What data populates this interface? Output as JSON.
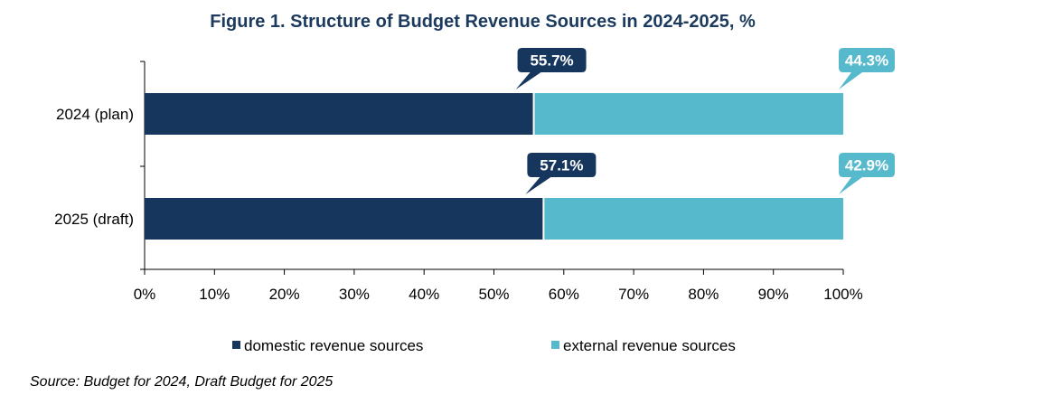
{
  "title": "Figure 1. Structure of Budget Revenue Sources in 2024-2025, %",
  "source": "Source: Budget for 2024, Draft Budget for 2025",
  "colors": {
    "domestic": "#17365d",
    "external": "#57b9cc",
    "title": "#1b3a5e"
  },
  "chart_data": {
    "type": "bar",
    "orientation": "horizontal",
    "stacked": true,
    "title": "Figure 1. Structure of Budget Revenue Sources in 2024-2025, %",
    "categories": [
      "2024 (plan)",
      "2025 (draft)"
    ],
    "series": [
      {
        "name": "domestic revenue sources",
        "values": [
          55.7,
          57.1
        ],
        "labels": [
          "55.7%",
          "57.1%"
        ]
      },
      {
        "name": "external revenue sources",
        "values": [
          44.3,
          42.9
        ],
        "labels": [
          "44.3%",
          "42.9%"
        ]
      }
    ],
    "xlim": [
      0,
      100
    ],
    "xticks": [
      0,
      10,
      20,
      30,
      40,
      50,
      60,
      70,
      80,
      90,
      100
    ],
    "xtick_labels": [
      "0%",
      "10%",
      "20%",
      "30%",
      "40%",
      "50%",
      "60%",
      "70%",
      "80%",
      "90%",
      "100%"
    ],
    "xlabel": "",
    "ylabel": "",
    "legend_position": "bottom",
    "grid": false
  }
}
